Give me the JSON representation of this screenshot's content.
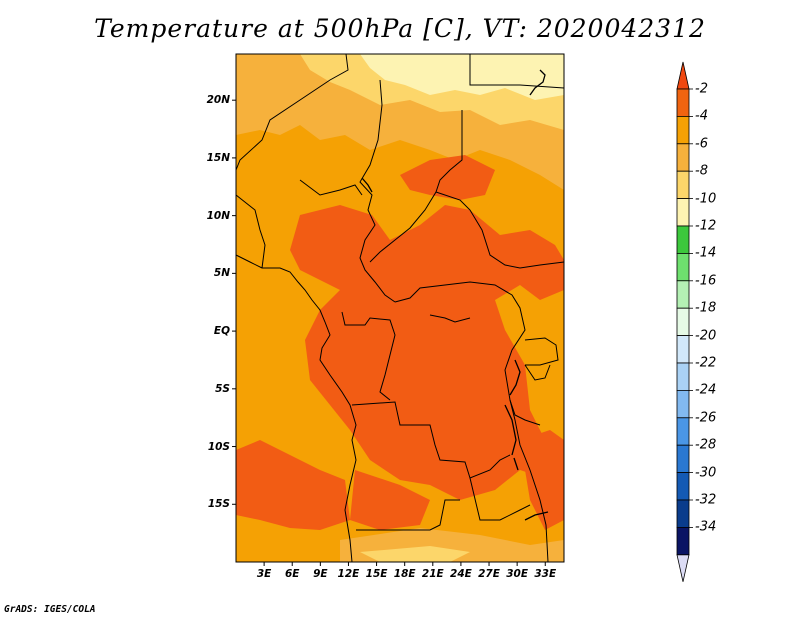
{
  "title": "Temperature at 500hPa [C], VT: 2020042312",
  "map": {
    "lon_range": [
      0,
      35
    ],
    "lat_range": [
      -20,
      24
    ],
    "lat_ticks": [
      "20N",
      "15N",
      "10N",
      "5N",
      "EQ",
      "5S",
      "10S",
      "15S"
    ],
    "lat_values": [
      20,
      15,
      10,
      5,
      0,
      -5,
      -10,
      -15
    ],
    "lon_ticks": [
      "3E",
      "6E",
      "9E",
      "12E",
      "15E",
      "18E",
      "21E",
      "24E",
      "27E",
      "30E",
      "33E"
    ],
    "lon_values": [
      3,
      6,
      9,
      12,
      15,
      18,
      21,
      24,
      27,
      30,
      33
    ],
    "fill_colors": {
      "minus4_to_minus2": "#f25c14",
      "minus6_to_minus4": "#f5a104",
      "minus8_to_minus6": "#f6b13c",
      "minus10_to_minus8": "#fcd66a",
      "minus12_to_minus10": "#fdf3b2"
    }
  },
  "colorbar": {
    "labels": [
      "-2",
      "-4",
      "-6",
      "-8",
      "-10",
      "-12",
      "-14",
      "-16",
      "-18",
      "-20",
      "-22",
      "-24",
      "-26",
      "-28",
      "-30",
      "-32",
      "-34"
    ],
    "colors": [
      "#f04810",
      "#f06410",
      "#f5a104",
      "#f6b13c",
      "#fcd66a",
      "#fdf3b2",
      "#3cc83c",
      "#6ee06e",
      "#b4f0b4",
      "#e6fae6",
      "#d2e8fa",
      "#aad2f5",
      "#82b9f0",
      "#4a96e6",
      "#2a78d2",
      "#145ab4",
      "#0a3c8c",
      "#0a1464",
      "#dcdcf5"
    ]
  },
  "footer": "GrADS: IGES/COLA"
}
